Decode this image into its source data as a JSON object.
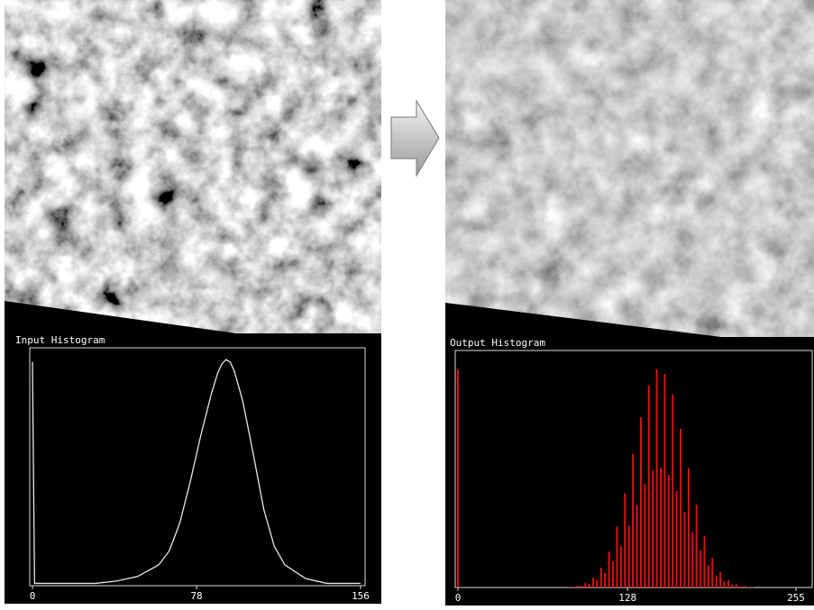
{
  "chart_data": [
    {
      "type": "line",
      "title": "Input Histogram",
      "color": "#e8e8e8",
      "x": [
        0,
        1,
        10,
        20,
        30,
        40,
        50,
        60,
        65,
        70,
        75,
        80,
        85,
        88,
        90,
        92,
        94,
        96,
        100,
        105,
        110,
        115,
        120,
        130,
        140,
        150,
        156
      ],
      "values": [
        97,
        1,
        1,
        1,
        1,
        2,
        4,
        9,
        15,
        27,
        45,
        65,
        83,
        92,
        96,
        98,
        97,
        93,
        80,
        57,
        33,
        17,
        9,
        3,
        1,
        1,
        1
      ],
      "xlim": [
        0,
        156
      ],
      "xticks": [
        0,
        78,
        156
      ],
      "ylim": [
        0,
        100
      ]
    },
    {
      "type": "bar",
      "title": "Output Histogram",
      "color": "#e01010",
      "x": [
        0,
        84,
        87,
        90,
        93,
        96,
        99,
        102,
        105,
        108,
        111,
        114,
        117,
        120,
        123,
        126,
        129,
        132,
        135,
        138,
        141,
        144,
        147,
        150,
        153,
        156,
        159,
        162,
        165,
        168,
        171,
        174,
        177,
        180,
        183,
        186,
        189,
        192,
        195,
        198,
        201,
        204,
        207,
        210,
        213,
        216,
        219,
        222
      ],
      "values": [
        95,
        0.3,
        0.3,
        0.8,
        0.7,
        1.9,
        1.5,
        4.2,
        3.3,
        8.5,
        6.4,
        15.6,
        11.3,
        26.5,
        18,
        41,
        27,
        58,
        36,
        74,
        45,
        88,
        51,
        95,
        52,
        93,
        49,
        84,
        42,
        69,
        33,
        52,
        24,
        36,
        16,
        22.4,
        9.5,
        12.9,
        5.2,
        6.7,
        2.6,
        3.2,
        1.2,
        1.4,
        0.5,
        0.6,
        0.2,
        0.2
      ],
      "xlim": [
        0,
        255
      ],
      "xticks": [
        0,
        128,
        255
      ],
      "ylim": [
        0,
        100
      ]
    }
  ]
}
